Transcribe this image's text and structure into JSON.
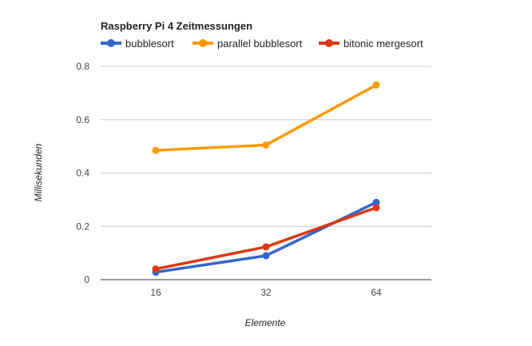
{
  "chart_data": {
    "type": "line",
    "title": "Raspberry Pi 4 Zeitmessungen",
    "xlabel": "Elemente",
    "ylabel": "Millisekunden",
    "categories": [
      "16",
      "32",
      "64"
    ],
    "ylim": [
      0,
      0.8
    ],
    "yticks": [
      0,
      0.2,
      0.4,
      0.6,
      0.8
    ],
    "ytick_labels": [
      "0",
      "0.2",
      "0.4",
      "0.6",
      "0.8"
    ],
    "grid": true,
    "legend_position": "top-left",
    "series": [
      {
        "name": "bubblesort",
        "color": "#3366cc",
        "values": [
          0.028,
          0.09,
          0.29
        ]
      },
      {
        "name": "parallel bubblesort",
        "color": "#ff9900",
        "values": [
          0.485,
          0.505,
          0.73
        ]
      },
      {
        "name": "bitonic mergesort",
        "color": "#dc3912",
        "values": [
          0.04,
          0.123,
          0.27
        ]
      }
    ]
  }
}
